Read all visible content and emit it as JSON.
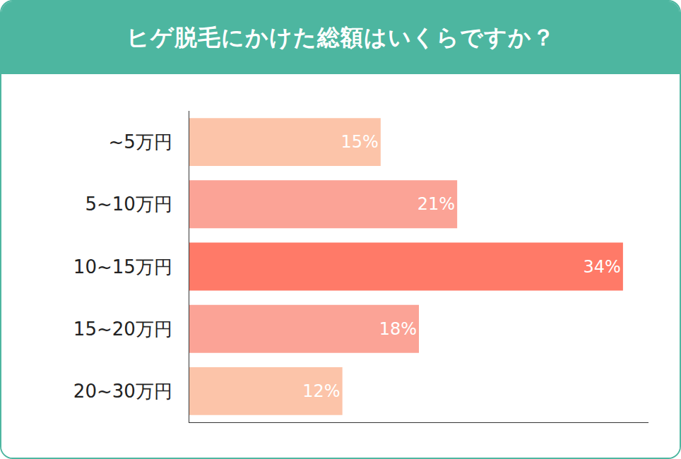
{
  "chart_data": {
    "type": "bar",
    "title": "ヒゲ脱毛にかけた総額はいくらですか？",
    "orientation": "horizontal",
    "categories": [
      "~5万円",
      "5~10万円",
      "10~15万円",
      "15~20万円",
      "20~30万円"
    ],
    "values": [
      15,
      21,
      34,
      18,
      12
    ],
    "value_labels": [
      "15%",
      "21%",
      "34%",
      "18%",
      "12%"
    ],
    "colors": [
      "#fcc4a9",
      "#fba396",
      "#ff7a68",
      "#fba396",
      "#fcc4a9"
    ],
    "xlim": [
      0,
      36
    ],
    "data_labels": true,
    "tick_labels": "y",
    "grid": false
  }
}
